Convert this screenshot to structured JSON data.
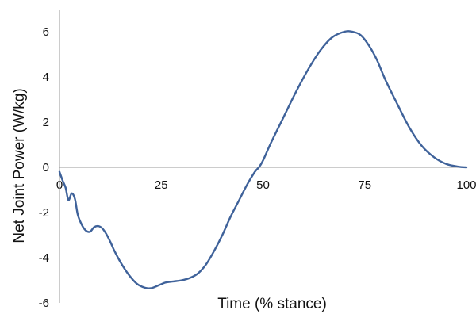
{
  "chart_data": {
    "type": "line",
    "title": "",
    "xlabel": "Time (% stance)",
    "ylabel": "Net Joint Power (W/kg)",
    "xlim": [
      0,
      100
    ],
    "ylim": [
      -6,
      6
    ],
    "xticks": [
      0,
      25,
      50,
      75,
      100
    ],
    "yticks": [
      -6,
      -4,
      -2,
      0,
      2,
      4,
      6
    ],
    "grid": false,
    "legend": "none",
    "series": [
      {
        "color": "#3f629a",
        "x": [
          0,
          0.8,
          1.5,
          2.2,
          3.0,
          3.8,
          4.5,
          5.5,
          6.5,
          7.5,
          8.5,
          9.5,
          10.5,
          11.5,
          12.5,
          13.5,
          15,
          17,
          19,
          21,
          22.5,
          24,
          26,
          28,
          30,
          32,
          34,
          36,
          38,
          40,
          42,
          44,
          46,
          48,
          49,
          50,
          52,
          55,
          58,
          61,
          64,
          67,
          70,
          72,
          74,
          76,
          78,
          80,
          83,
          86,
          89,
          92,
          95,
          98,
          100
        ],
        "y": [
          -0.2,
          -0.6,
          -0.9,
          -1.45,
          -1.15,
          -1.4,
          -2.1,
          -2.55,
          -2.8,
          -2.85,
          -2.65,
          -2.6,
          -2.7,
          -2.95,
          -3.3,
          -3.7,
          -4.2,
          -4.75,
          -5.15,
          -5.33,
          -5.35,
          -5.25,
          -5.1,
          -5.05,
          -5.0,
          -4.9,
          -4.7,
          -4.3,
          -3.7,
          -3.0,
          -2.2,
          -1.5,
          -0.8,
          -0.2,
          0.0,
          0.3,
          1.1,
          2.2,
          3.3,
          4.3,
          5.15,
          5.75,
          6.0,
          6.0,
          5.85,
          5.4,
          4.75,
          3.9,
          2.8,
          1.75,
          0.95,
          0.45,
          0.15,
          0.03,
          0.0
        ]
      }
    ]
  }
}
